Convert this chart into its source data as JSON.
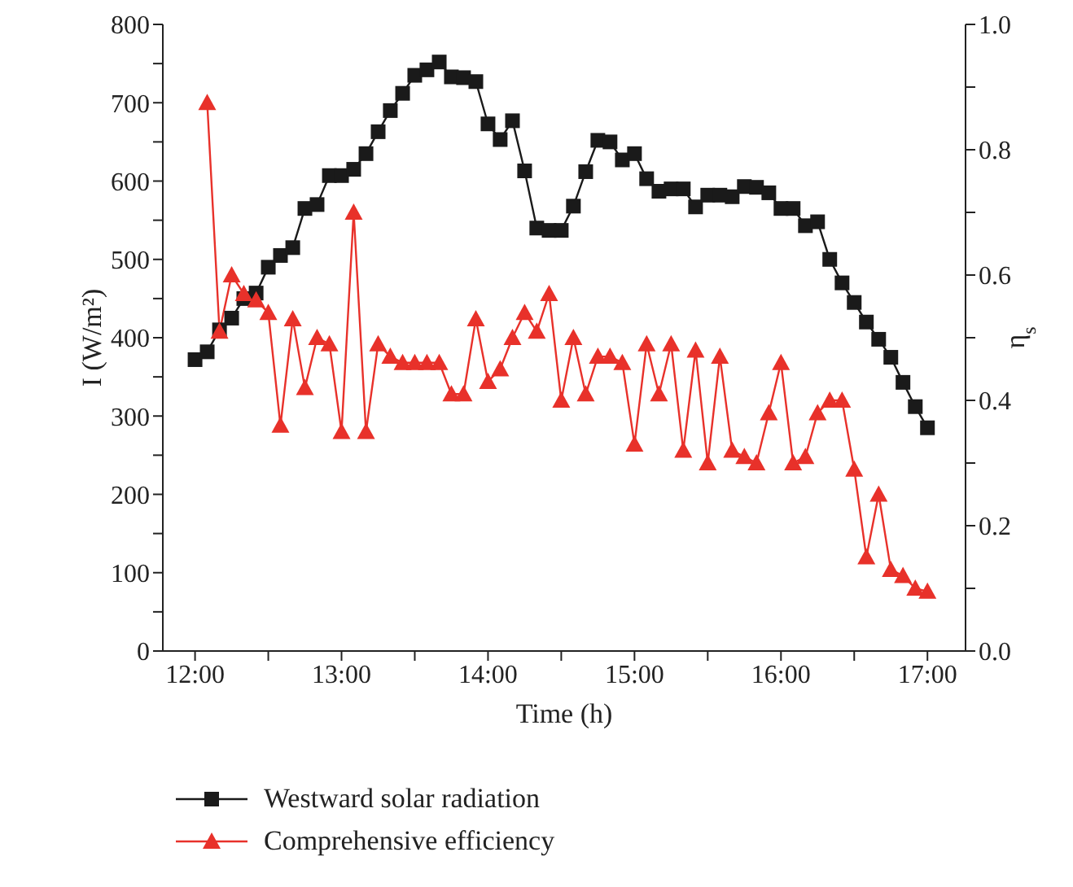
{
  "chart_data": {
    "type": "line",
    "xlabel": "Time (h)",
    "ylabel": "I (W/m²)",
    "y2label": "η$_{s}$",
    "xlim": [
      11.78,
      17.26
    ],
    "xticks": [
      {
        "value": 12,
        "label": "12:00"
      },
      {
        "value": 12.5,
        "label": null
      },
      {
        "value": 13,
        "label": "13:00"
      },
      {
        "value": 13.5,
        "label": null
      },
      {
        "value": 14,
        "label": "14:00"
      },
      {
        "value": 14.5,
        "label": null
      },
      {
        "value": 15,
        "label": "15:00"
      },
      {
        "value": 15.5,
        "label": null
      },
      {
        "value": 16,
        "label": "16:00"
      },
      {
        "value": 16.5,
        "label": null
      },
      {
        "value": 17,
        "label": "17:00"
      }
    ],
    "ylim": [
      0,
      800
    ],
    "yticks": [
      0,
      {
        "value": 50,
        "label": null
      },
      100,
      {
        "value": 150,
        "label": null
      },
      200,
      {
        "value": 250,
        "label": null
      },
      300,
      {
        "value": 350,
        "label": null
      },
      400,
      {
        "value": 450,
        "label": null
      },
      500,
      {
        "value": 550,
        "label": null
      },
      600,
      {
        "value": 650,
        "label": null
      },
      700,
      {
        "value": 750,
        "label": null
      },
      800
    ],
    "y2lim": [
      0,
      1
    ],
    "y2ticks": [
      {
        "value": 0,
        "label": "0.0"
      },
      {
        "value": 0.1,
        "label": null
      },
      {
        "value": 0.2,
        "label": "0.2"
      },
      {
        "value": 0.3,
        "label": null
      },
      {
        "value": 0.4,
        "label": "0.4"
      },
      {
        "value": 0.5,
        "label": null
      },
      {
        "value": 0.6,
        "label": "0.6"
      },
      {
        "value": 0.7,
        "label": null
      },
      {
        "value": 0.8,
        "label": "0.8"
      },
      {
        "value": 0.9,
        "label": null
      },
      {
        "value": 1,
        "label": "1.0"
      }
    ],
    "legend": "bottom",
    "line_style": "solid",
    "series": [
      {
        "name": "Westward solar radiation",
        "color": "#1a1a1a",
        "marker": "square",
        "axis": "y",
        "x": [
          12,
          12.083,
          12.167,
          12.25,
          12.333,
          12.417,
          12.5,
          12.583,
          12.667,
          12.75,
          12.833,
          12.917,
          13,
          13.083,
          13.167,
          13.25,
          13.333,
          13.417,
          13.5,
          13.583,
          13.667,
          13.75,
          13.833,
          13.917,
          14,
          14.083,
          14.167,
          14.25,
          14.333,
          14.417,
          14.5,
          14.583,
          14.667,
          14.75,
          14.833,
          14.917,
          15,
          15.083,
          15.167,
          15.25,
          15.333,
          15.417,
          15.5,
          15.583,
          15.667,
          15.75,
          15.833,
          15.917,
          16,
          16.083,
          16.167,
          16.25,
          16.333,
          16.417,
          16.5,
          16.583,
          16.667,
          16.75,
          16.833,
          16.917,
          17
        ],
        "values": [
          372,
          382,
          410,
          425,
          450,
          457,
          490,
          505,
          515,
          565,
          570,
          607,
          607,
          615,
          635,
          663,
          690,
          712,
          735,
          742,
          752,
          733,
          732,
          727,
          673,
          653,
          677,
          613,
          540,
          537,
          537,
          568,
          612,
          652,
          650,
          627,
          635,
          603,
          587,
          590,
          590,
          567,
          582,
          582,
          580,
          593,
          592,
          585,
          565,
          565,
          543,
          548,
          500,
          470,
          445,
          420,
          398,
          375,
          343,
          312,
          285
        ]
      },
      {
        "name": "Comprehensive efficiency",
        "color": "#e8312a",
        "marker": "triangle",
        "axis": "y2",
        "x": [
          12.083,
          12.167,
          12.25,
          12.333,
          12.417,
          12.5,
          12.583,
          12.667,
          12.75,
          12.833,
          12.917,
          13,
          13.083,
          13.167,
          13.25,
          13.333,
          13.417,
          13.5,
          13.583,
          13.667,
          13.75,
          13.833,
          13.917,
          14,
          14.083,
          14.167,
          14.25,
          14.333,
          14.417,
          14.5,
          14.583,
          14.667,
          14.75,
          14.833,
          14.917,
          15,
          15.083,
          15.167,
          15.25,
          15.333,
          15.417,
          15.5,
          15.583,
          15.667,
          15.75,
          15.833,
          15.917,
          16,
          16.083,
          16.167,
          16.25,
          16.333,
          16.417,
          16.5,
          16.583,
          16.667,
          16.75,
          16.833,
          16.917,
          17
        ],
        "values": [
          0.875,
          0.51,
          0.6,
          0.57,
          0.56,
          0.54,
          0.36,
          0.53,
          0.42,
          0.5,
          0.49,
          0.35,
          0.7,
          0.35,
          0.49,
          0.47,
          0.46,
          0.46,
          0.46,
          0.46,
          0.41,
          0.41,
          0.53,
          0.43,
          0.45,
          0.5,
          0.54,
          0.51,
          0.57,
          0.4,
          0.5,
          0.41,
          0.47,
          0.47,
          0.46,
          0.33,
          0.49,
          0.41,
          0.49,
          0.32,
          0.48,
          0.3,
          0.47,
          0.32,
          0.31,
          0.3,
          0.38,
          0.46,
          0.3,
          0.31,
          0.38,
          0.4,
          0.4,
          0.29,
          0.15,
          0.25,
          0.13,
          0.12,
          0.1,
          0.095
        ]
      }
    ]
  }
}
